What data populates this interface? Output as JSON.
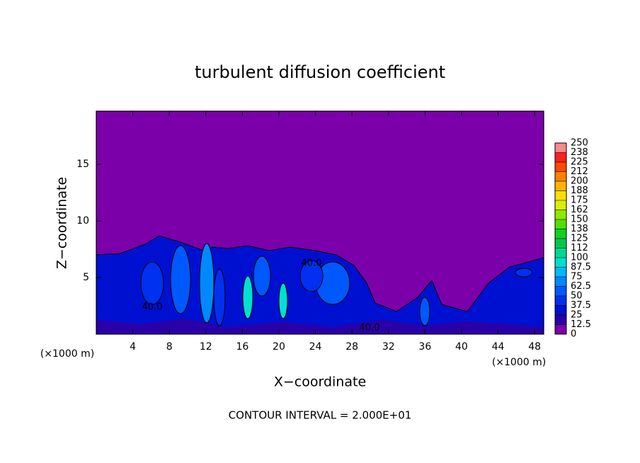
{
  "chart_data": {
    "type": "contour",
    "title": "turbulent diffusion coefficient",
    "x_label": "X−coordinate",
    "y_label": "Z−coordinate",
    "x_unit_label_left": "(×1000 m)",
    "x_unit_label_right": "(×1000 m)",
    "footer": "CONTOUR INTERVAL = 2.000E+01",
    "contour_labels": [
      "40.0",
      "40.0",
      "40.0"
    ],
    "xlim": [
      0,
      49
    ],
    "ylim": [
      0,
      19.7
    ],
    "xticks": [
      4,
      8,
      12,
      16,
      20,
      24,
      28,
      32,
      36,
      40,
      44,
      48
    ],
    "yticks": [
      5,
      10,
      15
    ],
    "colorbar": {
      "ticks": [
        0,
        12.5,
        25,
        37.5,
        50,
        62.5,
        75,
        87.5,
        100,
        {
          "value": 112.5,
          "label": "112"
        },
        125,
        {
          "value": 137.5,
          "label": "138"
        },
        150,
        {
          "value": 162.5,
          "label": "162"
        },
        175,
        {
          "value": 187.5,
          "label": "188"
        },
        200,
        {
          "value": 212.5,
          "label": "212"
        },
        225,
        {
          "value": 237.5,
          "label": "238"
        },
        250
      ],
      "colors": [
        "#7b00aa",
        "#2a00a8",
        "#0010d0",
        "#0030f0",
        "#0058ff",
        "#0088ff",
        "#00b8ff",
        "#00e0d0",
        "#00d890",
        "#00c850",
        "#10d020",
        "#50e000",
        "#90e800",
        "#d8f000",
        "#ffe000",
        "#ffb400",
        "#ff8000",
        "#ff4800",
        "#ff2020",
        "#ff8888"
      ]
    }
  }
}
